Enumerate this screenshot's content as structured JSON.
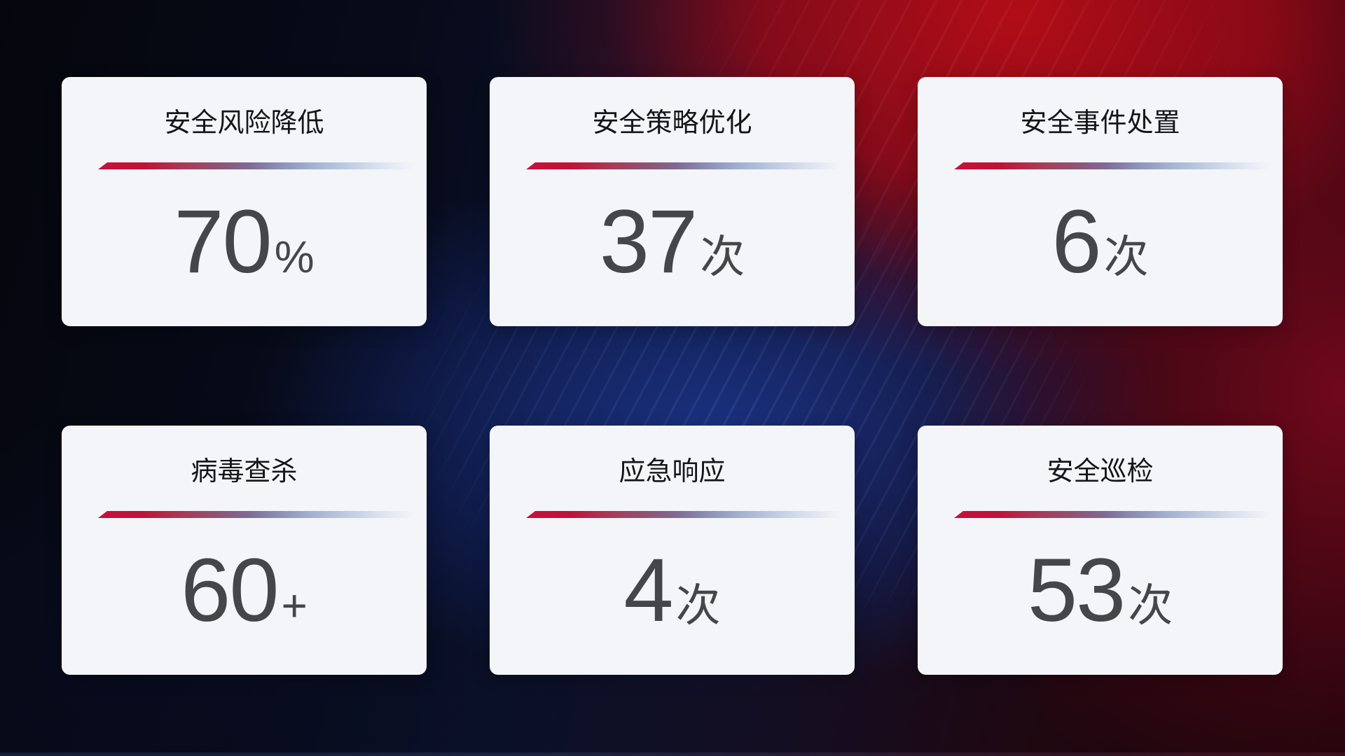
{
  "cards": [
    {
      "title": "安全风险降低",
      "value": "70",
      "unit": "%"
    },
    {
      "title": "安全策略优化",
      "value": "37",
      "unit": "次"
    },
    {
      "title": "安全事件处置",
      "value": "6",
      "unit": "次"
    },
    {
      "title": "病毒查杀",
      "value": "60",
      "unit": "+"
    },
    {
      "title": "应急响应",
      "value": "4",
      "unit": "次"
    },
    {
      "title": "安全巡检",
      "value": "53",
      "unit": "次"
    }
  ],
  "colors": {
    "card_background": "#f4f5f9",
    "title_text": "#141519",
    "value_text": "#45464a",
    "divider_red": "#c90f3a",
    "divider_blue_gray": "#a3b2d2",
    "background_red": "#a50d13",
    "background_blue": "#1b3386",
    "background_dark": "#05060d"
  }
}
